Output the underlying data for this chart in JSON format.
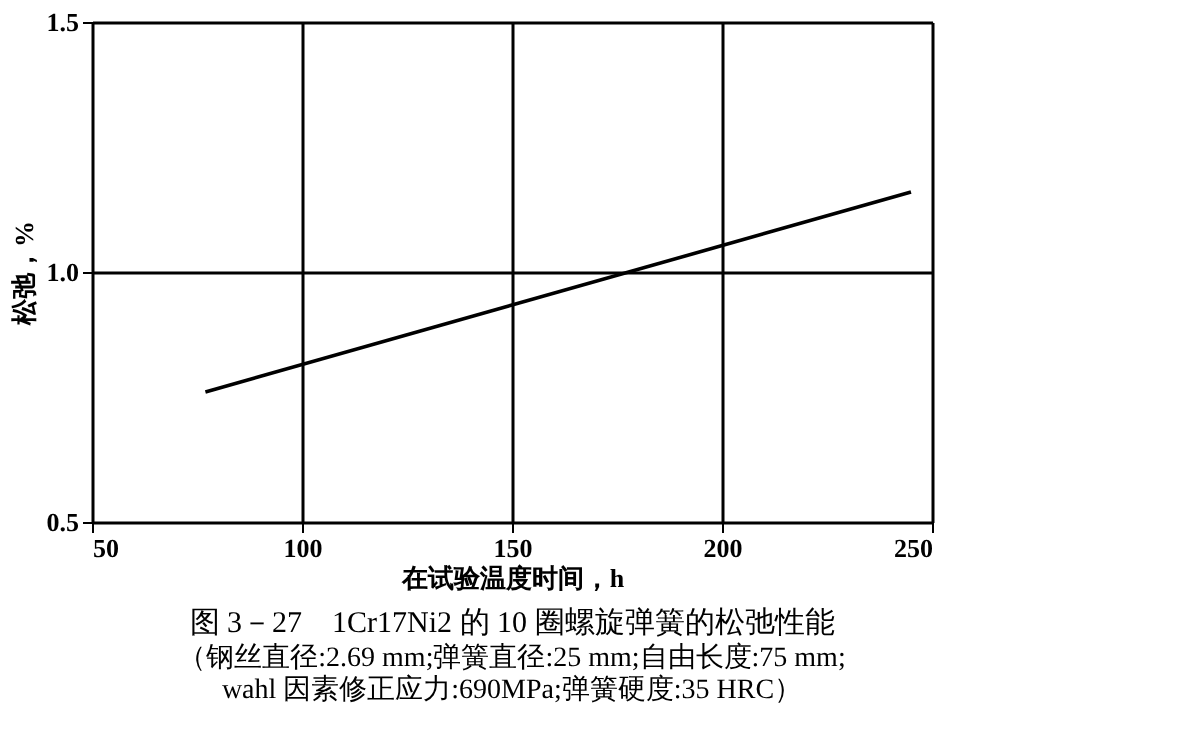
{
  "chart_data": {
    "type": "line",
    "title": "图 3－27　1Cr17Ni2 的 10 圈螺旋弹簧的松弛性能",
    "annotations": [
      "（钢丝直径:2.69 mm;弹簧直径:25 mm;自由长度:75 mm;",
      "wahl 因素修正应力:690MPa;弹簧硬度:35 HRC）"
    ],
    "xlabel": "在试验温度时间，h",
    "ylabel": "松弛，%",
    "x": [
      77,
      245
    ],
    "values": [
      0.76,
      1.16
    ],
    "color": "#000000",
    "xlim": [
      50,
      250
    ],
    "xticks": [
      50,
      100,
      150,
      200,
      250
    ],
    "ylim": [
      0.5,
      1.5
    ],
    "yticks": [
      0.5,
      {
        "value": 1.0,
        "label": "1.0"
      },
      1.5
    ],
    "grid": true,
    "marker": "none",
    "line_style": "solid"
  }
}
